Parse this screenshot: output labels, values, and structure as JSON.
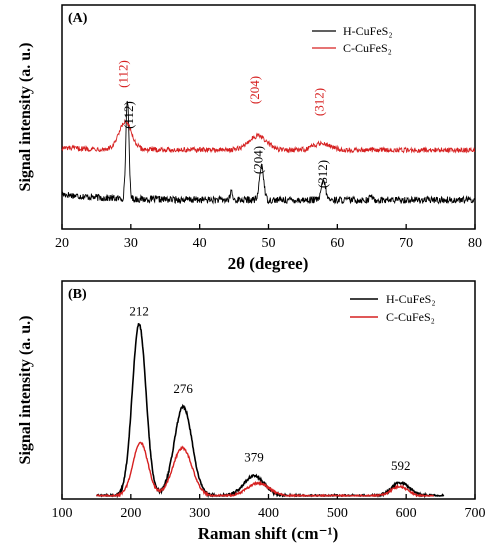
{
  "chart_data": [
    {
      "panel_label": "(A)",
      "type": "line",
      "xlabel": "2θ (degree)",
      "ylabel": "Signal intensity (a. u.)",
      "xlim": [
        20,
        80
      ],
      "xticks": [
        "20",
        "30",
        "40",
        "50",
        "60",
        "70",
        "80"
      ],
      "yticks": [],
      "grid": false,
      "legend_position": "top-right",
      "series": [
        {
          "name": "H-CuFeS₂",
          "color": "#000000",
          "offset": 0,
          "baseline": 0.12,
          "noise": 0.035,
          "peaks": [
            {
              "x": 29.5,
              "height": 1.0,
              "width": 0.22
            },
            {
              "x": 44.6,
              "height": 0.09,
              "width": 0.15
            },
            {
              "x": 49.0,
              "height": 0.35,
              "width": 0.3
            },
            {
              "x": 58.0,
              "height": 0.19,
              "width": 0.3
            },
            {
              "x": 64.9,
              "height": 0.05,
              "width": 0.15
            }
          ]
        },
        {
          "name": "C-CuFeS₂",
          "color": "#d62020",
          "offset": 0.62,
          "baseline": 0.0,
          "noise": 0.025,
          "peaks": [
            {
              "x": 29.2,
              "height": 0.27,
              "width": 0.9
            },
            {
              "x": 48.4,
              "height": 0.14,
              "width": 1.3
            },
            {
              "x": 57.8,
              "height": 0.07,
              "width": 1.2
            }
          ]
        }
      ],
      "annotations": [
        {
          "text": "(112)",
          "x": 30.3,
          "level": 0.97,
          "color": "#000000"
        },
        {
          "text": "(204)",
          "x": 49.1,
          "level": 0.52,
          "color": "#000000"
        },
        {
          "text": "(312)",
          "x": 58.5,
          "level": 0.38,
          "color": "#000000"
        },
        {
          "text": "(112)",
          "x": 29.5,
          "level": 1.38,
          "color": "#d62020"
        },
        {
          "text": "(204)",
          "x": 48.6,
          "level": 1.22,
          "color": "#d62020"
        },
        {
          "text": "(312)",
          "x": 58.0,
          "level": 1.1,
          "color": "#d62020"
        }
      ]
    },
    {
      "panel_label": "(B)",
      "type": "line",
      "xlabel": "Raman shift (cm⁻¹)",
      "ylabel": "Signal intensity (a. u.)",
      "xlim": [
        100,
        700
      ],
      "ylim": [
        0,
        1.25
      ],
      "xticks": [
        "100",
        "200",
        "300",
        "400",
        "500",
        "600",
        "700"
      ],
      "yticks": [],
      "grid": false,
      "legend_position": "top-right",
      "series": [
        {
          "name": "H-CuFeS₂",
          "color": "#000000",
          "x_range": [
            150,
            655
          ],
          "noise": 0.008,
          "peaks": [
            {
              "x": 212,
              "height": 1.0,
              "width": 10
            },
            {
              "x": 276,
              "height": 0.52,
              "width": 13
            },
            {
              "x": 379,
              "height": 0.118,
              "width": 15
            },
            {
              "x": 592,
              "height": 0.078,
              "width": 13
            }
          ]
        },
        {
          "name": "C-CuFeS₂",
          "color": "#d62020",
          "x_range": [
            150,
            640
          ],
          "noise": 0.006,
          "peaks": [
            {
              "x": 214,
              "height": 0.31,
              "width": 11
            },
            {
              "x": 275,
              "height": 0.28,
              "width": 14
            },
            {
              "x": 385,
              "height": 0.075,
              "width": 16
            },
            {
              "x": 590,
              "height": 0.055,
              "width": 12
            }
          ]
        }
      ],
      "annotations": [
        {
          "text": "212",
          "x": 212,
          "y": 1.05
        },
        {
          "text": "276",
          "x": 276,
          "y": 0.6
        },
        {
          "text": "379",
          "x": 379,
          "y": 0.2
        },
        {
          "text": "592",
          "x": 592,
          "y": 0.15
        }
      ]
    }
  ]
}
